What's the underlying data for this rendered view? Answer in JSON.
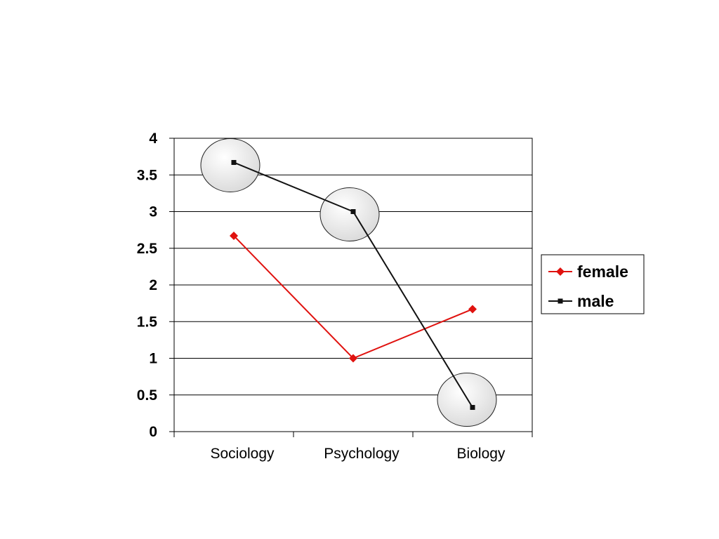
{
  "chart_data": {
    "type": "line",
    "categories": [
      "Sociology",
      "Psychology",
      "Biology"
    ],
    "series": [
      {
        "name": "female",
        "color": "#e0120f",
        "marker": "diamond",
        "values": [
          2.67,
          1.0,
          1.67
        ]
      },
      {
        "name": "male",
        "color": "#111111",
        "marker": "square",
        "values": [
          3.67,
          3.0,
          0.33
        ]
      }
    ],
    "y_ticks": [
      "0",
      "0.5",
      "1",
      "1.5",
      "2",
      "2.5",
      "3",
      "3.5",
      "4"
    ],
    "ylim": [
      0,
      4
    ],
    "grid": true,
    "legend": "right",
    "highlighted_points": [
      {
        "series": "male",
        "category": "Sociology"
      },
      {
        "series": "male",
        "category": "Psychology"
      },
      {
        "series": "male",
        "category": "Biology"
      }
    ]
  }
}
